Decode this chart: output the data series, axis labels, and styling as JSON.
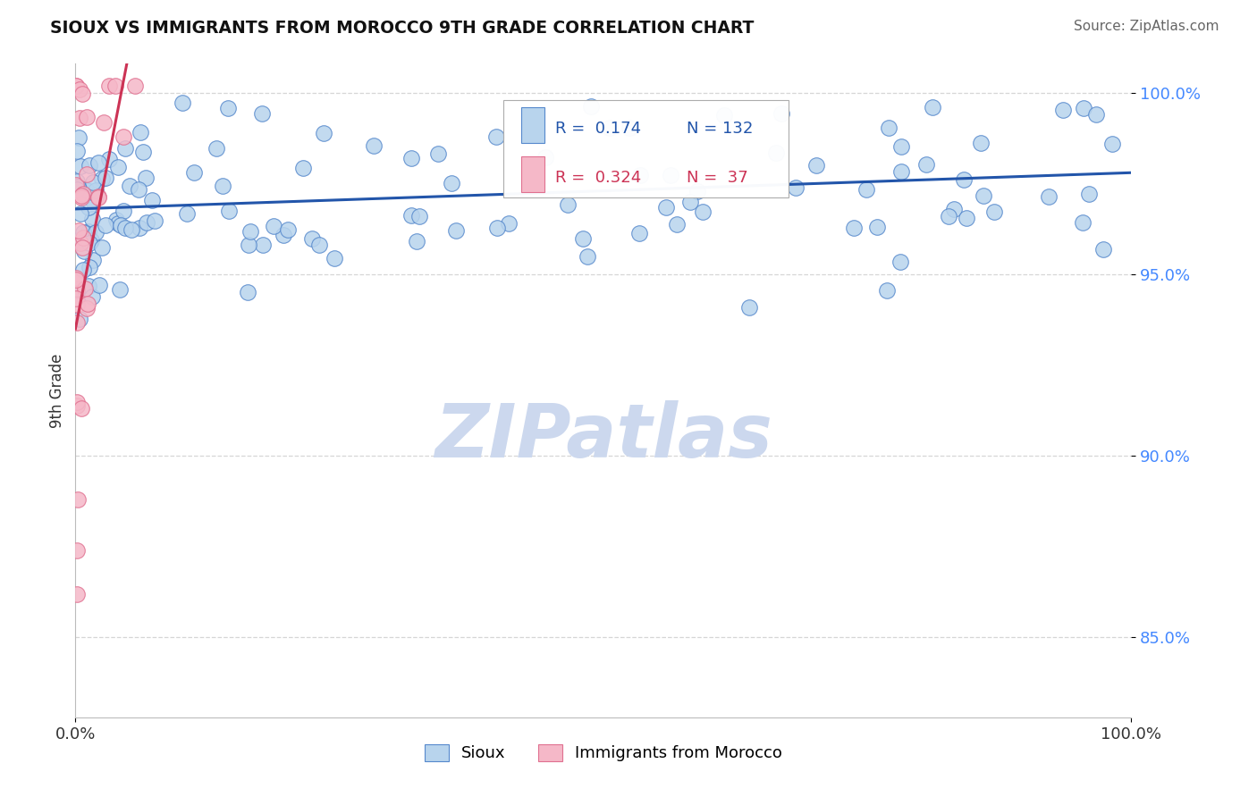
{
  "title": "SIOUX VS IMMIGRANTS FROM MOROCCO 9TH GRADE CORRELATION CHART",
  "source_text": "Source: ZipAtlas.com",
  "ylabel": "9th Grade",
  "x_min": 0.0,
  "x_max": 1.0,
  "y_min": 0.828,
  "y_max": 1.008,
  "x_tick_labels": [
    "0.0%",
    "100.0%"
  ],
  "y_tick_labels": [
    "85.0%",
    "90.0%",
    "95.0%",
    "100.0%"
  ],
  "y_tick_values": [
    0.85,
    0.9,
    0.95,
    1.0
  ],
  "sioux_color": "#b8d4ed",
  "sioux_edge_color": "#5588cc",
  "morocco_color": "#f5b8c8",
  "morocco_edge_color": "#e07090",
  "trendline_sioux_color": "#2255aa",
  "trendline_morocco_color": "#cc3355",
  "legend_R_sioux": "0.174",
  "legend_N_sioux": "132",
  "legend_R_morocco": "0.324",
  "legend_N_morocco": "37",
  "background_color": "#ffffff",
  "grid_color": "#cccccc",
  "watermark_text": "ZIPatlas",
  "watermark_color": "#ccd8ee",
  "ytick_color": "#4488ff",
  "title_color": "#111111",
  "source_color": "#666666"
}
